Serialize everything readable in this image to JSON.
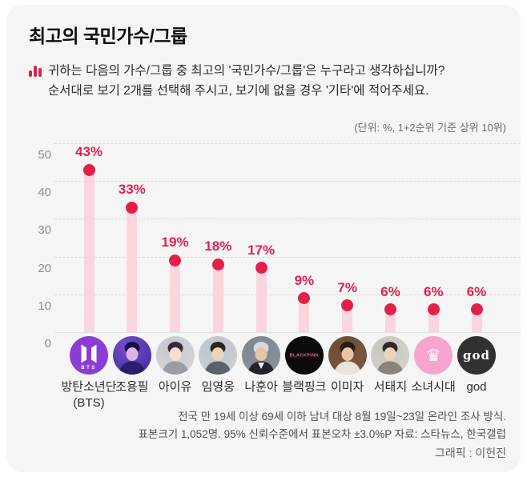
{
  "page": {
    "title": "최고의 국민가수/그룹",
    "question_line1": "귀하는 다음의 가수/그룹 중 최고의 '국민가수/그룹'은 누구라고 생각하십니까?",
    "question_line2": "순서대로 보기 2개를 선택해 주시고, 보기에 없을 경우 '기타'에 적어주세요.",
    "unit_note": "(단위: %, 1+2순위 기준 상위 10위)",
    "footnote_line1": "전국 만 19세 이상 69세 이하 남녀 대상 8월 19일~23일 온라인 조사 방식.",
    "footnote_line2": "표본크기 1,052명. 95% 신뢰수준에서 표본오차 ±3.0%P 자료: 스타뉴스, 한국갤럽",
    "credit": "그래픽 : 이헌진"
  },
  "colors": {
    "accent_red": "#e3204a",
    "stem_pink": "#f9d6de",
    "card_bg": "#f5f5f6",
    "grid_gray": "#d9d9d9",
    "axis_label_gray": "#8d8d8d"
  },
  "chart_data": {
    "type": "bar",
    "style": "lollipop",
    "title": "최고의 국민가수/그룹",
    "unit": "%",
    "categories": [
      "방탄소년단 (BTS)",
      "조용필",
      "아이유",
      "임영웅",
      "나훈아",
      "블랙핑크",
      "이미자",
      "서태지",
      "소녀시대",
      "god"
    ],
    "category_lines": [
      [
        "방탄소년단",
        "(BTS)"
      ],
      [
        "조용필"
      ],
      [
        "아이유"
      ],
      [
        "임영웅"
      ],
      [
        "나훈아"
      ],
      [
        "블랙핑크"
      ],
      [
        "이미자"
      ],
      [
        "서태지"
      ],
      [
        "소녀시대"
      ],
      [
        "god"
      ]
    ],
    "values": [
      43,
      33,
      19,
      18,
      17,
      9,
      7,
      6,
      6,
      6
    ],
    "value_labels": [
      "43%",
      "33%",
      "19%",
      "18%",
      "17%",
      "9%",
      "7%",
      "6%",
      "6%",
      "6%"
    ],
    "ylim": [
      0,
      55
    ],
    "yticks": [
      0,
      10,
      20,
      30,
      40,
      50
    ],
    "grid": "horizontal-dashed",
    "legend": "none",
    "avatars": [
      {
        "kind": "logo-bts",
        "bg": "#8a3dd4",
        "fg": "#ffffff",
        "text": "BTS"
      },
      {
        "kind": "photo",
        "bg": "#35298c",
        "bg2": "#7b4fd6",
        "hair": "#171040",
        "skin": "#d9b6e3",
        "shirt": "#2a1f6e"
      },
      {
        "kind": "photo",
        "bg": "#d7d7db",
        "bg2": "#c6c6cc",
        "hair": "#2e2d33",
        "skin": "#f2e0d6",
        "shirt": "#9b9ba1"
      },
      {
        "kind": "photo",
        "bg": "#ccd1d6",
        "bg2": "#bfc5cc",
        "hair": "#2a261f",
        "skin": "#eed3bb",
        "shirt": "#59606e"
      },
      {
        "kind": "photo",
        "bg": "#8f959d",
        "bg2": "#7e848d",
        "hair": "#d6d8dc",
        "skin": "#e6c4a8",
        "shirt": "#23242a",
        "collar": "#f2f2f2"
      },
      {
        "kind": "logo-text",
        "bg": "#0b0b0b",
        "fg": "#ee5f9f",
        "text": "BLACKPINK",
        "size": 7
      },
      {
        "kind": "photo",
        "bg": "#7d5c41",
        "bg2": "#6b4c33",
        "hair": "#241b12",
        "skin": "#eac4a4",
        "shirt": "#e8e4de"
      },
      {
        "kind": "photo",
        "bg": "#d6d4cf",
        "bg2": "#c8c5be",
        "hair": "#2f2b24",
        "skin": "#ecd2bd",
        "shirt": "#8a857c"
      },
      {
        "kind": "logo-crown",
        "bg": "#f6a6cc",
        "fg": "#ffffff",
        "glyph": "♛"
      },
      {
        "kind": "logo-god",
        "bg": "#313131",
        "fg": "#ffffff",
        "text": "god"
      }
    ]
  }
}
